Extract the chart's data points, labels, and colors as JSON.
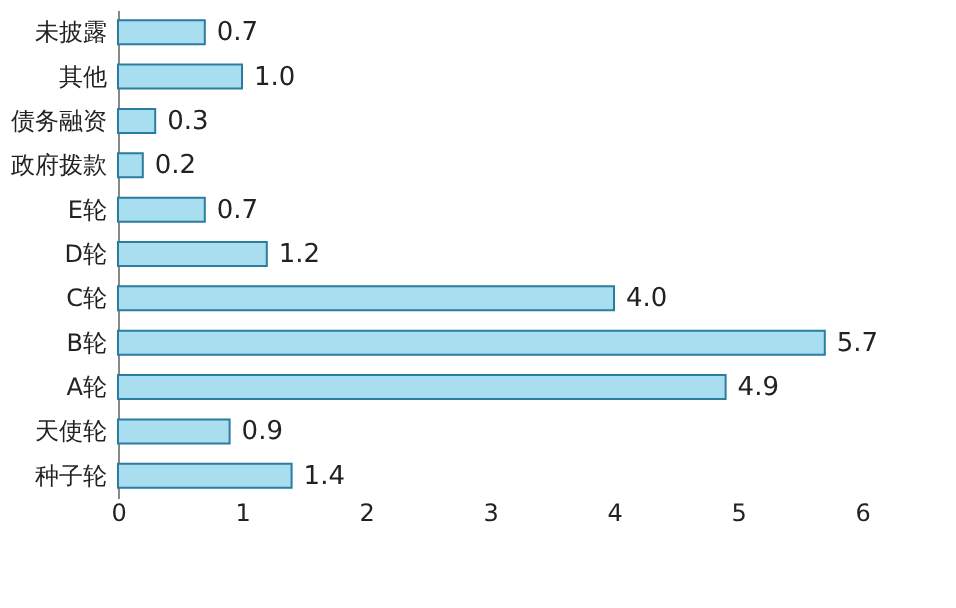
{
  "chart_data": {
    "type": "bar",
    "orientation": "horizontal",
    "categories": [
      "未披露",
      "其他",
      "债务融资",
      "政府拨款",
      "E轮",
      "D轮",
      "C轮",
      "B轮",
      "A轮",
      "天使轮",
      "种子轮"
    ],
    "values": [
      0.7,
      1.0,
      0.3,
      0.2,
      0.7,
      1.2,
      4.0,
      5.7,
      4.9,
      0.9,
      1.4
    ],
    "value_labels": [
      "0.7",
      "1.0",
      "0.3",
      "0.2",
      "0.7",
      "1.2",
      "4.0",
      "5.7",
      "4.9",
      "0.9",
      "1.4"
    ],
    "color": "#a9ddf0",
    "xlim": [
      0,
      6
    ],
    "xticks": [
      0,
      1,
      2,
      3,
      4,
      5,
      6
    ],
    "grid": false
  }
}
